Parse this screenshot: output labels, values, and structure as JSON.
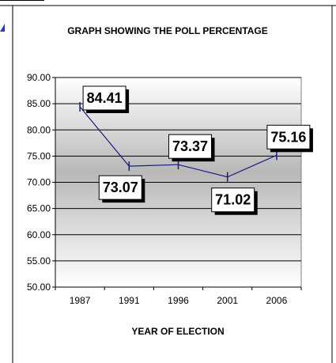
{
  "chart_data": {
    "type": "line",
    "title": "GRAPH SHOWING THE POLL PERCENTAGE",
    "xlabel": "YEAR OF ELECTION",
    "ylabel": "",
    "categories": [
      "1987",
      "1991",
      "1996",
      "2001",
      "2006"
    ],
    "values": [
      84.41,
      73.07,
      73.37,
      71.02,
      75.16
    ],
    "data_labels": [
      "84.41",
      "73.07",
      "73.37",
      "71.02",
      "75.16"
    ],
    "ylim": [
      50,
      90
    ],
    "yticks": [
      "50.00",
      "55.00",
      "60.00",
      "65.00",
      "70.00",
      "75.00",
      "80.00",
      "85.00",
      "90.00"
    ],
    "grid": true,
    "legend": "none",
    "colors": {
      "line": "#1a1a80",
      "frame": "#1a1a80",
      "plot_top": "#ffffff",
      "plot_mid": "#b8b8b8",
      "plot_bottom": "#ffffff",
      "label_box": "#ffffff",
      "label_shadow": "#000000"
    }
  }
}
